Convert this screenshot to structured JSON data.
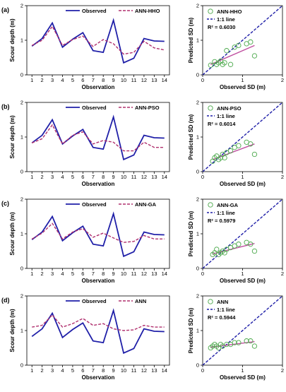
{
  "chart_data": [
    {
      "panel": "(a)",
      "type": "line",
      "x": [
        1,
        2,
        3,
        4,
        5,
        6,
        7,
        8,
        9,
        10,
        11,
        12,
        13,
        14
      ],
      "xlabel": "Observation",
      "ylabel": "Scour depth (m)",
      "xlim": [
        0.5,
        14.5
      ],
      "ylim": [
        0,
        2
      ],
      "yticks": [
        0,
        1,
        2
      ],
      "legend_position": "top",
      "series": [
        {
          "name": "Observed",
          "style": "solid",
          "color": "#1f1fa8",
          "values": [
            0.83,
            1.05,
            1.5,
            0.8,
            1.03,
            1.22,
            0.7,
            0.65,
            1.58,
            0.35,
            0.48,
            1.05,
            0.98,
            0.97
          ]
        },
        {
          "name": "ANN-HHO",
          "style": "dashed",
          "color": "#b0306e",
          "values": [
            0.85,
            1.0,
            1.4,
            0.85,
            1.02,
            1.12,
            0.82,
            1.02,
            0.9,
            0.6,
            0.65,
            0.97,
            0.78,
            0.72
          ]
        }
      ]
    },
    {
      "panel": "(a)",
      "type": "scatter",
      "xlabel": "Observed SD (m)",
      "ylabel": "Predicted SD (m)",
      "xlim": [
        0,
        2
      ],
      "ylim": [
        0,
        2
      ],
      "xticks": [
        0,
        1,
        2
      ],
      "yticks": [
        0,
        1,
        2
      ],
      "marker_name": "ANN-HHO",
      "identity_label": "1:1 line",
      "r2_text": "R² = 0.6030",
      "points": [
        [
          0.2,
          0.28
        ],
        [
          0.3,
          0.38
        ],
        [
          0.35,
          0.3
        ],
        [
          0.4,
          0.35
        ],
        [
          0.45,
          0.4
        ],
        [
          0.5,
          0.3
        ],
        [
          0.55,
          0.35
        ],
        [
          0.6,
          0.7
        ],
        [
          0.7,
          0.3
        ],
        [
          0.8,
          0.8
        ],
        [
          0.9,
          0.85
        ],
        [
          1.1,
          0.9
        ],
        [
          1.2,
          0.95
        ],
        [
          1.3,
          0.55
        ]
      ],
      "trend": [
        [
          0.2,
          0.3
        ],
        [
          1.3,
          0.85
        ]
      ]
    },
    {
      "panel": "(b)",
      "type": "line",
      "x": [
        1,
        2,
        3,
        4,
        5,
        6,
        7,
        8,
        9,
        10,
        11,
        12,
        13,
        14
      ],
      "xlabel": "Observation",
      "ylabel": "Scour depth (m)",
      "xlim": [
        0.5,
        14.5
      ],
      "ylim": [
        0,
        2
      ],
      "yticks": [
        0,
        1,
        2
      ],
      "legend_position": "top",
      "series": [
        {
          "name": "Observed",
          "style": "solid",
          "color": "#1f1fa8",
          "values": [
            0.83,
            1.05,
            1.5,
            0.8,
            1.03,
            1.22,
            0.7,
            0.65,
            1.58,
            0.35,
            0.48,
            1.05,
            0.98,
            0.97
          ]
        },
        {
          "name": "ANN-PSO",
          "style": "dashed",
          "color": "#b0306e",
          "values": [
            0.83,
            0.95,
            1.35,
            0.8,
            1.05,
            1.15,
            0.8,
            0.9,
            0.85,
            0.6,
            0.6,
            0.85,
            0.7,
            0.7
          ]
        }
      ]
    },
    {
      "panel": "(b)",
      "type": "scatter",
      "xlabel": "Observed SD (m)",
      "ylabel": "Predicted SD (m)",
      "xlim": [
        0,
        2
      ],
      "ylim": [
        0,
        2
      ],
      "xticks": [
        0,
        1,
        2
      ],
      "yticks": [
        0,
        1,
        2
      ],
      "marker_name": "ANN-PSO",
      "identity_label": "1:1 line",
      "r2_text": "R² = 0.6014",
      "points": [
        [
          0.25,
          0.3
        ],
        [
          0.3,
          0.4
        ],
        [
          0.35,
          0.45
        ],
        [
          0.4,
          0.35
        ],
        [
          0.45,
          0.4
        ],
        [
          0.5,
          0.5
        ],
        [
          0.55,
          0.4
        ],
        [
          0.6,
          0.55
        ],
        [
          0.7,
          0.6
        ],
        [
          0.8,
          0.7
        ],
        [
          0.9,
          0.75
        ],
        [
          1.1,
          0.85
        ],
        [
          1.2,
          0.8
        ],
        [
          1.3,
          0.5
        ]
      ],
      "trend": [
        [
          0.25,
          0.35
        ],
        [
          1.3,
          0.8
        ]
      ]
    },
    {
      "panel": "(c)",
      "type": "line",
      "x": [
        1,
        2,
        3,
        4,
        5,
        6,
        7,
        8,
        9,
        10,
        11,
        12,
        13,
        14
      ],
      "xlabel": "Observation",
      "ylabel": "Scour depth (m)",
      "xlim": [
        0.5,
        14.5
      ],
      "ylim": [
        0,
        2
      ],
      "yticks": [
        0,
        1,
        2
      ],
      "legend_position": "top",
      "series": [
        {
          "name": "Observed",
          "style": "solid",
          "color": "#1f1fa8",
          "values": [
            0.83,
            1.05,
            1.5,
            0.8,
            1.03,
            1.22,
            0.7,
            0.65,
            1.58,
            0.35,
            0.48,
            1.05,
            0.98,
            0.97
          ]
        },
        {
          "name": "ANN-GA",
          "style": "dashed",
          "color": "#b0306e",
          "values": [
            0.85,
            1.02,
            1.3,
            0.85,
            1.05,
            1.15,
            0.9,
            1.02,
            0.88,
            0.75,
            0.78,
            0.95,
            0.85,
            0.85
          ]
        }
      ]
    },
    {
      "panel": "(c)",
      "type": "scatter",
      "xlabel": "Observed SD (m)",
      "ylabel": "Predicted SD (m)",
      "xlim": [
        0,
        2
      ],
      "ylim": [
        0,
        2
      ],
      "xticks": [
        0,
        1,
        2
      ],
      "yticks": [
        0,
        1,
        2
      ],
      "marker_name": "ANN-GA",
      "identity_label": "1:1 line",
      "r2_text": "R² = 0.5979",
      "points": [
        [
          0.25,
          0.4
        ],
        [
          0.3,
          0.45
        ],
        [
          0.35,
          0.55
        ],
        [
          0.4,
          0.4
        ],
        [
          0.45,
          0.45
        ],
        [
          0.5,
          0.5
        ],
        [
          0.55,
          0.45
        ],
        [
          0.6,
          0.55
        ],
        [
          0.7,
          0.6
        ],
        [
          0.8,
          0.65
        ],
        [
          0.9,
          0.7
        ],
        [
          1.1,
          0.75
        ],
        [
          1.2,
          0.7
        ],
        [
          1.3,
          0.5
        ]
      ],
      "trend": [
        [
          0.25,
          0.42
        ],
        [
          1.3,
          0.72
        ]
      ]
    },
    {
      "panel": "(d)",
      "type": "line",
      "x": [
        1,
        2,
        3,
        4,
        5,
        6,
        7,
        8,
        9,
        10,
        11,
        12,
        13,
        14
      ],
      "xlabel": "Observation",
      "ylabel": "Scour depth (m)",
      "xlim": [
        0.5,
        14.5
      ],
      "ylim": [
        0,
        2
      ],
      "yticks": [
        0,
        1,
        2
      ],
      "legend_position": "top",
      "series": [
        {
          "name": "Observed",
          "style": "solid",
          "color": "#1f1fa8",
          "values": [
            0.83,
            1.05,
            1.5,
            0.8,
            1.03,
            1.22,
            0.7,
            0.65,
            1.58,
            0.35,
            0.48,
            1.05,
            0.98,
            0.97
          ]
        },
        {
          "name": "ANN",
          "style": "dashed",
          "color": "#b0306e",
          "values": [
            1.1,
            1.15,
            1.45,
            1.1,
            1.2,
            1.35,
            1.15,
            1.2,
            1.05,
            1.0,
            1.02,
            1.15,
            1.1,
            1.1
          ]
        }
      ]
    },
    {
      "panel": "(d)",
      "type": "scatter",
      "xlabel": "Observed SD (m)",
      "ylabel": "Predicted SD (m)",
      "xlim": [
        0,
        2
      ],
      "ylim": [
        0,
        2
      ],
      "xticks": [
        0,
        1,
        2
      ],
      "yticks": [
        0,
        1,
        2
      ],
      "marker_name": "ANN",
      "identity_label": "1:1 line",
      "r2_text": "R² = 0.5944",
      "points": [
        [
          0.2,
          0.5
        ],
        [
          0.25,
          0.55
        ],
        [
          0.3,
          0.6
        ],
        [
          0.35,
          0.55
        ],
        [
          0.4,
          0.5
        ],
        [
          0.45,
          0.6
        ],
        [
          0.5,
          0.55
        ],
        [
          0.6,
          0.6
        ],
        [
          0.7,
          0.6
        ],
        [
          0.8,
          0.65
        ],
        [
          0.9,
          0.65
        ],
        [
          1.1,
          0.7
        ],
        [
          1.2,
          0.7
        ],
        [
          1.3,
          0.55
        ]
      ],
      "trend": [
        [
          0.2,
          0.52
        ],
        [
          1.3,
          0.68
        ]
      ]
    }
  ],
  "colors": {
    "observed": "#1f1fa8",
    "predicted": "#b0306e",
    "identity": "#1f1fa8",
    "marker": "#4aa84a",
    "trend": "#c050a0"
  }
}
